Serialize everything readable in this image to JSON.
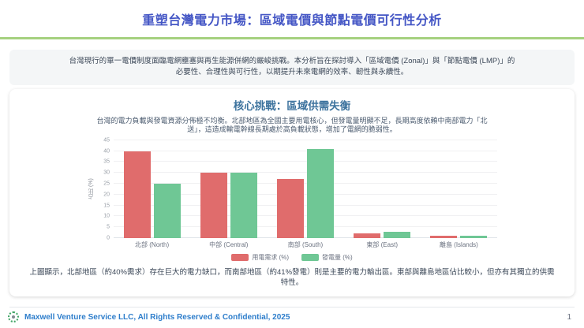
{
  "header": {
    "title": "重塑台灣電力市場：區域電價與節點電價可行性分析"
  },
  "intro": {
    "text": "台灣現行的單一電價制度面臨電網壅塞與再生能源併網的嚴峻挑戰。本分析旨在探討導入「區域電價 (Zonal)」與「節點電價 (LMP)」的必要性、合理性與可行性，以期提升未來電網的效率、韌性與永續性。"
  },
  "section": {
    "title": "核心挑戰：區域供需失衡",
    "description": "台灣的電力負載與發電資源分佈極不均衡。北部地區為全國主要用電核心，但發電量明顯不足，長期高度依賴中南部電力「北送」，這造成輸電幹線長期處於高負載狀態，增加了電網的脆弱性。",
    "conclusion": "上圖顯示，北部地區（約40%需求）存在巨大的電力缺口，而南部地區（約41%發電）則是主要的電力輸出區。東部與離島地區佔比較小，但亦有其獨立的供需特性。"
  },
  "chart_data": {
    "type": "bar",
    "categories": [
      "北部 (North)",
      "中部 (Central)",
      "南部 (South)",
      "東部 (East)",
      "離島 (Islands)"
    ],
    "series": [
      {
        "name": "用電需求 (%)",
        "color": "#e06c6c",
        "values": [
          40,
          30,
          27,
          2,
          1
        ]
      },
      {
        "name": "發電量 (%)",
        "color": "#6fc795",
        "values": [
          25,
          30,
          41,
          3,
          1
        ]
      }
    ],
    "ylabel": "占比 (%)",
    "ylim": [
      0,
      45
    ],
    "yticks": [
      0,
      5,
      10,
      15,
      20,
      25,
      30,
      35,
      40,
      45
    ],
    "grid": true,
    "legend_position": "bottom"
  },
  "footer": {
    "logo_icon": "dotted-circle-logo",
    "text": "Maxwell Venture Service LLC, All Rights Reserved & Confidential, 2025",
    "page_number": "1"
  },
  "colors": {
    "title_blue": "#4456c5",
    "divider_green": "#a5d17f",
    "section_heading_blue": "#3d739e",
    "demand_red": "#e06c6c",
    "generation_green": "#6fc795",
    "footer_blue": "#2d7dcb"
  }
}
